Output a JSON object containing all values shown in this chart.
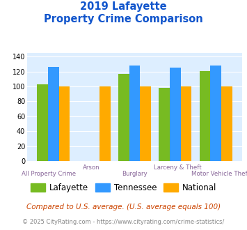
{
  "title_line1": "2019 Lafayette",
  "title_line2": "Property Crime Comparison",
  "categories": [
    "All Property Crime",
    "Arson",
    "Burglary",
    "Larceny & Theft",
    "Motor Vehicle Theft"
  ],
  "lafayette": [
    103,
    0,
    117,
    98,
    121
  ],
  "tennessee": [
    126,
    0,
    128,
    125,
    128
  ],
  "national": [
    100,
    100,
    100,
    100,
    100
  ],
  "bar_color_lafayette": "#77bb22",
  "bar_color_tennessee": "#3399ff",
  "bar_color_national": "#ffaa00",
  "background_color": "#ddeeff",
  "ylim": [
    0,
    145
  ],
  "yticks": [
    0,
    20,
    40,
    60,
    80,
    100,
    120,
    140
  ],
  "xlabel_top": [
    "",
    "Arson",
    "",
    "Larceny & Theft",
    ""
  ],
  "xlabel_bottom": [
    "All Property Crime",
    "",
    "Burglary",
    "",
    "Motor Vehicle Theft"
  ],
  "legend_labels": [
    "Lafayette",
    "Tennessee",
    "National"
  ],
  "footnote1": "Compared to U.S. average. (U.S. average equals 100)",
  "footnote2": "© 2025 CityRating.com - https://www.cityrating.com/crime-statistics/",
  "title_color": "#1155cc",
  "footnote1_color": "#cc4400",
  "footnote2_color": "#888888",
  "xlabel_color": "#886699"
}
